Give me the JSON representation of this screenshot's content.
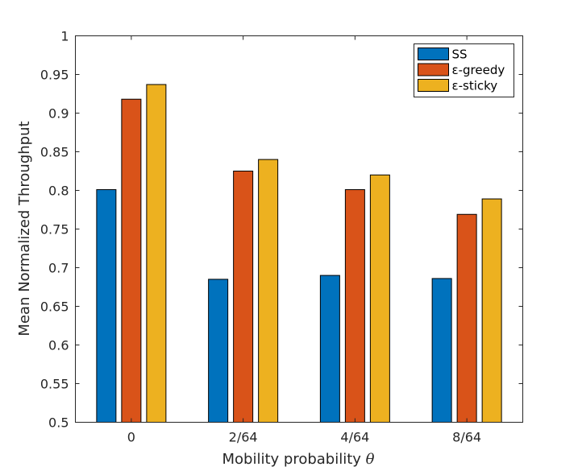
{
  "chart_data": {
    "type": "bar",
    "title": "",
    "xlabel": "Mobility probability",
    "xlabel_symbol": "θ",
    "ylabel": "Mean Normalized Throughput",
    "ylim": [
      0.5,
      1
    ],
    "yticks": [
      0.5,
      0.55,
      0.6,
      0.65,
      0.7,
      0.75,
      0.8,
      0.85,
      0.9,
      0.95,
      1
    ],
    "ytick_labels": [
      "0.5",
      "0.55",
      "0.6",
      "0.65",
      "0.7",
      "0.75",
      "0.8",
      "0.85",
      "0.9",
      "0.95",
      "1"
    ],
    "categories": [
      "0",
      "2/64",
      "4/64",
      "8/64"
    ],
    "grid": false,
    "legend_position": "top-right",
    "series": [
      {
        "name": "SS",
        "color": "#0072BD",
        "values": [
          0.801,
          0.685,
          0.69,
          0.686
        ]
      },
      {
        "name": "ε-greedy",
        "color": "#D95319",
        "values": [
          0.918,
          0.825,
          0.801,
          0.769
        ]
      },
      {
        "name": "ε-sticky",
        "color": "#EDB120",
        "values": [
          0.937,
          0.84,
          0.82,
          0.789
        ]
      }
    ]
  }
}
